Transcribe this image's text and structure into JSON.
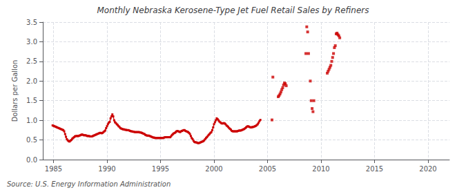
{
  "chart_data": {
    "type": "line",
    "title": "Monthly Nebraska Kerosene-Type Jet Fuel Retail Sales by Refiners",
    "ylabel": "Dollars per Gallon",
    "annotations": [
      "Source: U.S. Energy Information Administration"
    ],
    "xlim": [
      1984,
      2022
    ],
    "xticks": [
      1985,
      1990,
      1995,
      2000,
      2005,
      2010,
      2015,
      2020
    ],
    "ylim": [
      0.0,
      3.5
    ],
    "yticks": [
      {
        "value": 0.0,
        "label": "0.0"
      },
      0.5,
      {
        "value": 1.0,
        "label": "1.0"
      },
      1.5,
      {
        "value": 2.0,
        "label": "2.0"
      },
      2.5,
      {
        "value": 3.0,
        "label": "3.0"
      },
      3.5
    ],
    "grid": true,
    "series": [
      {
        "type": "line",
        "color": "#cc0000",
        "marker": "square",
        "line_style": "solid",
        "x": [
          1984.917,
          1985.0,
          1985.083,
          1985.167,
          1985.25,
          1985.333,
          1985.417,
          1985.5,
          1985.583,
          1985.667,
          1985.75,
          1985.833,
          1985.917,
          1986.0,
          1986.083,
          1986.167,
          1986.25,
          1986.333,
          1986.417,
          1986.5,
          1986.583,
          1986.667,
          1986.75,
          1986.833,
          1986.917,
          1987.0,
          1987.083,
          1987.167,
          1987.25,
          1987.333,
          1987.417,
          1987.5,
          1987.583,
          1987.667,
          1987.75,
          1987.833,
          1987.917,
          1988.0,
          1988.083,
          1988.167,
          1988.25,
          1988.333,
          1988.417,
          1988.5,
          1988.583,
          1988.667,
          1988.75,
          1988.833,
          1988.917,
          1989.0,
          1989.083,
          1989.167,
          1989.25,
          1989.333,
          1989.417,
          1989.5,
          1989.583,
          1989.667,
          1989.75,
          1989.833,
          1989.917,
          1990.0,
          1990.083,
          1990.167,
          1990.25,
          1990.333,
          1990.417,
          1990.5,
          1990.583,
          1990.667,
          1990.75,
          1990.833,
          1990.917,
          1991.0,
          1991.083,
          1991.167,
          1991.25,
          1991.333,
          1991.417,
          1991.5,
          1991.583,
          1991.667,
          1991.75,
          1991.833,
          1991.917,
          1992.0,
          1992.083,
          1992.167,
          1992.25,
          1992.333,
          1992.417,
          1992.5,
          1992.583,
          1992.667,
          1992.75,
          1992.833,
          1992.917,
          1993.0,
          1993.083,
          1993.167,
          1993.25,
          1993.333,
          1993.417,
          1993.5,
          1993.583,
          1993.667,
          1993.75,
          1993.833,
          1993.917,
          1994.0,
          1994.083,
          1994.167,
          1994.25,
          1994.333,
          1994.417,
          1994.5,
          1994.583,
          1994.667,
          1994.75,
          1994.833,
          1994.917,
          1995.0,
          1995.083,
          1995.167,
          1995.25,
          1995.333,
          1995.417,
          1995.5,
          1995.583,
          1995.667,
          1995.75,
          1995.833,
          1995.917,
          1996.0,
          1996.083,
          1996.167,
          1996.25,
          1996.333,
          1996.417,
          1996.5,
          1996.583,
          1996.667,
          1996.75,
          1996.833,
          1996.917,
          1997.0,
          1997.083,
          1997.167,
          1997.25,
          1997.333,
          1997.417,
          1997.5,
          1997.583,
          1997.667,
          1997.75,
          1997.833,
          1997.917,
          1998.0,
          1998.083,
          1998.167,
          1998.25,
          1998.333,
          1998.417,
          1998.5,
          1998.583,
          1998.667,
          1998.75,
          1998.833,
          1998.917,
          1999.0,
          1999.083,
          1999.167,
          1999.25,
          1999.333,
          1999.417,
          1999.5,
          1999.583,
          1999.667,
          1999.75,
          1999.833,
          1999.917,
          2000.0,
          2000.083,
          2000.167,
          2000.25,
          2000.333,
          2000.417,
          2000.5,
          2000.583,
          2000.667,
          2000.75,
          2000.833,
          2000.917,
          2001.0,
          2001.083,
          2001.167,
          2001.25,
          2001.333,
          2001.417,
          2001.5,
          2001.583,
          2001.667,
          2001.75,
          2001.833,
          2001.917,
          2002.0,
          2002.083,
          2002.167,
          2002.25,
          2002.333,
          2002.417,
          2002.5,
          2002.583,
          2002.667,
          2002.75,
          2002.833,
          2002.917,
          2003.0,
          2003.083,
          2003.167,
          2003.25,
          2003.333,
          2003.417,
          2003.5,
          2003.583,
          2003.667,
          2003.75,
          2003.833,
          2003.917,
          2004.0,
          2004.083,
          2004.167,
          2004.25,
          2004.333
        ],
        "values": [
          0.87,
          0.86,
          0.85,
          0.84,
          0.83,
          0.82,
          0.81,
          0.8,
          0.79,
          0.78,
          0.77,
          0.76,
          0.75,
          0.72,
          0.65,
          0.58,
          0.52,
          0.49,
          0.47,
          0.46,
          0.48,
          0.5,
          0.53,
          0.55,
          0.57,
          0.59,
          0.6,
          0.6,
          0.6,
          0.6,
          0.61,
          0.62,
          0.63,
          0.64,
          0.63,
          0.62,
          0.62,
          0.62,
          0.61,
          0.6,
          0.6,
          0.6,
          0.59,
          0.59,
          0.59,
          0.6,
          0.61,
          0.62,
          0.63,
          0.64,
          0.65,
          0.66,
          0.67,
          0.68,
          0.68,
          0.67,
          0.68,
          0.7,
          0.72,
          0.74,
          0.8,
          0.85,
          0.9,
          0.94,
          0.96,
          1.05,
          1.1,
          1.15,
          1.1,
          1.0,
          0.95,
          0.93,
          0.9,
          0.88,
          0.85,
          0.83,
          0.8,
          0.79,
          0.78,
          0.77,
          0.77,
          0.76,
          0.76,
          0.75,
          0.75,
          0.75,
          0.74,
          0.73,
          0.72,
          0.72,
          0.71,
          0.71,
          0.7,
          0.7,
          0.7,
          0.7,
          0.7,
          0.7,
          0.69,
          0.69,
          0.68,
          0.67,
          0.66,
          0.65,
          0.63,
          0.62,
          0.61,
          0.61,
          0.61,
          0.6,
          0.59,
          0.58,
          0.57,
          0.56,
          0.56,
          0.55,
          0.55,
          0.55,
          0.55,
          0.55,
          0.55,
          0.55,
          0.55,
          0.55,
          0.55,
          0.56,
          0.57,
          0.57,
          0.57,
          0.57,
          0.57,
          0.57,
          0.57,
          0.6,
          0.63,
          0.65,
          0.67,
          0.68,
          0.7,
          0.72,
          0.73,
          0.72,
          0.71,
          0.7,
          0.72,
          0.73,
          0.74,
          0.75,
          0.75,
          0.73,
          0.72,
          0.71,
          0.7,
          0.68,
          0.65,
          0.6,
          0.55,
          0.52,
          0.48,
          0.45,
          0.44,
          0.44,
          0.43,
          0.42,
          0.42,
          0.43,
          0.44,
          0.45,
          0.46,
          0.47,
          0.49,
          0.52,
          0.55,
          0.57,
          0.6,
          0.63,
          0.65,
          0.68,
          0.7,
          0.75,
          0.82,
          0.9,
          0.95,
          1.0,
          1.05,
          1.03,
          1.0,
          0.97,
          0.95,
          0.93,
          0.92,
          0.92,
          0.93,
          0.92,
          0.9,
          0.87,
          0.85,
          0.83,
          0.8,
          0.78,
          0.76,
          0.73,
          0.72,
          0.72,
          0.72,
          0.72,
          0.72,
          0.72,
          0.73,
          0.74,
          0.74,
          0.74,
          0.75,
          0.76,
          0.77,
          0.78,
          0.8,
          0.82,
          0.84,
          0.85,
          0.84,
          0.83,
          0.82,
          0.82,
          0.83,
          0.83,
          0.84,
          0.85,
          0.86,
          0.88,
          0.9,
          0.94,
          0.98,
          1.01
        ]
      },
      {
        "type": "scatter",
        "color": "#cc0000",
        "marker": "square",
        "x": [
          2005.417,
          2005.5,
          2006.0,
          2006.083,
          2006.167,
          2006.25,
          2006.333,
          2006.417,
          2006.5,
          2006.583,
          2006.667,
          2006.75,
          2008.583,
          2008.667,
          2008.75,
          2008.833,
          2009.0,
          2009.083,
          2009.167,
          2009.25,
          2009.333,
          2010.583,
          2010.667,
          2010.75,
          2010.833,
          2010.917,
          2011.0,
          2011.083,
          2011.167,
          2011.25,
          2011.333,
          2011.417,
          2011.5,
          2011.583,
          2011.667,
          2011.75
        ],
        "values": [
          1.01,
          2.1,
          1.6,
          1.63,
          1.67,
          1.72,
          1.78,
          1.83,
          1.9,
          1.95,
          1.93,
          1.88,
          2.7,
          3.38,
          3.25,
          2.7,
          2.0,
          1.5,
          1.3,
          1.22,
          1.5,
          2.2,
          2.25,
          2.3,
          2.35,
          2.4,
          2.5,
          2.6,
          2.7,
          2.85,
          2.9,
          3.2,
          3.22,
          3.18,
          3.15,
          3.1
        ]
      }
    ]
  }
}
